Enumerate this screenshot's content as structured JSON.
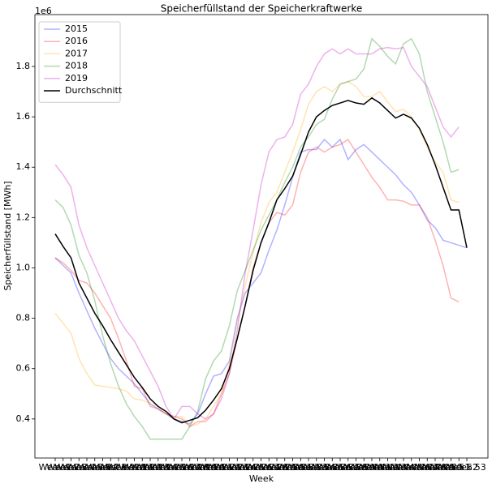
{
  "chart_data": {
    "type": "line",
    "title": "Speicherfüllstand der Speicherkraftwerke",
    "xlabel": "Week",
    "ylabel": "Speicherfüllstand [MWh]",
    "offset_label": "1e6",
    "categories": [
      "Week 1",
      "Week 2",
      "Week 3",
      "Week 4",
      "Week 5",
      "Week 6",
      "Week 7",
      "Week 8",
      "Week 9",
      "Week 10",
      "Week 11",
      "Week 12",
      "Week 13",
      "Week 14",
      "Week 15",
      "Week 16",
      "Week 17",
      "Week 18",
      "Week 19",
      "Week 20",
      "Week 21",
      "Week 22",
      "Week 23",
      "Week 24",
      "Week 25",
      "Week 26",
      "Week 27",
      "Week 28",
      "Week 29",
      "Week 30",
      "Week 31",
      "Week 32",
      "Week 33",
      "Week 34",
      "Week 35",
      "Week 36",
      "Week 37",
      "Week 38",
      "Week 39",
      "Week 40",
      "Week 41",
      "Week 42",
      "Week 43",
      "Week 44",
      "Week 45",
      "Week 46",
      "Week 47",
      "Week 48",
      "Week 49",
      "Week 50",
      "Week 51",
      "Week 52",
      "Week 53"
    ],
    "ylim": [
      0.245,
      2.006
    ],
    "yticks": [
      0.4,
      0.6,
      0.8,
      {
        "value": 1.0,
        "label": "1.0"
      },
      1.2,
      1.4,
      1.6,
      1.8
    ],
    "legend": "upper left",
    "series": [
      {
        "name": "2015",
        "color": "#0000ff",
        "alpha": 0.3,
        "values": [
          1.04,
          1.01,
          0.98,
          0.9,
          0.83,
          0.76,
          0.7,
          0.64,
          0.6,
          0.57,
          0.54,
          0.5,
          0.46,
          0.44,
          0.42,
          0.4,
          0.39,
          0.38,
          0.42,
          0.5,
          0.57,
          0.58,
          0.63,
          0.8,
          0.9,
          0.94,
          0.98,
          1.07,
          1.15,
          1.25,
          1.36,
          1.46,
          1.47,
          1.47,
          1.51,
          1.48,
          1.51,
          1.43,
          1.47,
          1.49,
          1.46,
          1.43,
          1.4,
          1.37,
          1.33,
          1.3,
          1.25,
          1.19,
          1.16,
          1.11,
          1.1,
          1.09,
          1.08
        ]
      },
      {
        "name": "2016",
        "color": "#ff0000",
        "alpha": 0.3,
        "values": [
          1.04,
          1.02,
          0.99,
          0.95,
          0.94,
          0.9,
          0.85,
          0.8,
          0.72,
          0.63,
          0.53,
          0.52,
          0.45,
          0.44,
          0.42,
          0.41,
          0.4,
          0.37,
          0.39,
          0.39,
          0.42,
          0.5,
          0.58,
          0.72,
          0.85,
          1.0,
          1.1,
          1.18,
          1.22,
          1.21,
          1.25,
          1.38,
          1.46,
          1.48,
          1.46,
          1.48,
          1.49,
          1.51,
          1.46,
          1.41,
          1.36,
          1.32,
          1.27,
          1.27,
          1.265,
          1.25,
          1.25,
          1.2,
          1.11,
          1.01,
          0.88,
          0.865,
          null
        ]
      },
      {
        "name": "2017",
        "color": "#ffa500",
        "alpha": 0.3,
        "values": [
          0.82,
          0.78,
          0.74,
          0.64,
          0.58,
          0.535,
          0.53,
          0.525,
          0.52,
          0.51,
          0.48,
          0.475,
          0.46,
          0.45,
          0.42,
          0.41,
          0.41,
          0.37,
          0.38,
          0.4,
          0.45,
          0.5,
          0.62,
          0.78,
          0.93,
          1.06,
          1.18,
          1.26,
          1.3,
          1.38,
          1.46,
          1.55,
          1.65,
          1.7,
          1.72,
          1.7,
          1.73,
          1.74,
          1.72,
          1.68,
          1.68,
          1.7,
          1.66,
          1.62,
          1.63,
          1.6,
          1.55,
          1.48,
          1.42,
          1.38,
          1.27,
          1.26,
          null
        ]
      },
      {
        "name": "2018",
        "color": "#008000",
        "alpha": 0.3,
        "values": [
          1.27,
          1.24,
          1.17,
          1.05,
          0.98,
          0.87,
          0.73,
          0.62,
          0.53,
          0.46,
          0.41,
          0.37,
          0.32,
          0.32,
          0.32,
          0.32,
          0.32,
          0.37,
          0.43,
          0.56,
          0.63,
          0.67,
          0.77,
          0.91,
          0.99,
          1.07,
          1.15,
          1.21,
          1.27,
          1.34,
          1.4,
          1.48,
          1.52,
          1.57,
          1.59,
          1.67,
          1.73,
          1.74,
          1.75,
          1.79,
          1.91,
          1.88,
          1.84,
          1.81,
          1.89,
          1.91,
          1.85,
          1.7,
          1.6,
          1.5,
          1.38,
          1.39,
          null
        ]
      },
      {
        "name": "2019",
        "color": "#bf00bf",
        "alpha": 0.3,
        "values": [
          1.41,
          1.37,
          1.32,
          1.17,
          1.08,
          1.01,
          0.94,
          0.87,
          0.8,
          0.75,
          0.71,
          0.65,
          0.59,
          0.53,
          0.45,
          0.4,
          0.45,
          0.45,
          0.42,
          0.4,
          0.42,
          0.48,
          0.58,
          0.75,
          0.98,
          1.15,
          1.33,
          1.46,
          1.51,
          1.52,
          1.57,
          1.69,
          1.73,
          1.8,
          1.85,
          1.87,
          1.85,
          1.87,
          1.85,
          1.85,
          1.85,
          1.87,
          1.875,
          1.87,
          1.875,
          1.8,
          1.76,
          1.72,
          1.64,
          1.56,
          1.52,
          1.56,
          null
        ]
      },
      {
        "name": "Durchschnitt",
        "color": "#000000",
        "alpha": 1,
        "values": [
          1.135,
          1.085,
          1.04,
          0.94,
          0.88,
          0.82,
          0.77,
          0.715,
          0.665,
          0.615,
          0.565,
          0.525,
          0.48,
          0.45,
          0.43,
          0.4,
          0.385,
          0.395,
          0.405,
          0.435,
          0.475,
          0.52,
          0.6,
          0.72,
          0.85,
          0.99,
          1.1,
          1.18,
          1.27,
          1.315,
          1.365,
          1.45,
          1.54,
          1.6,
          1.625,
          1.645,
          1.655,
          1.665,
          1.655,
          1.65,
          1.675,
          1.655,
          1.625,
          1.595,
          1.61,
          1.595,
          1.555,
          1.49,
          1.41,
          1.32,
          1.23,
          1.23,
          1.08
        ]
      }
    ]
  }
}
